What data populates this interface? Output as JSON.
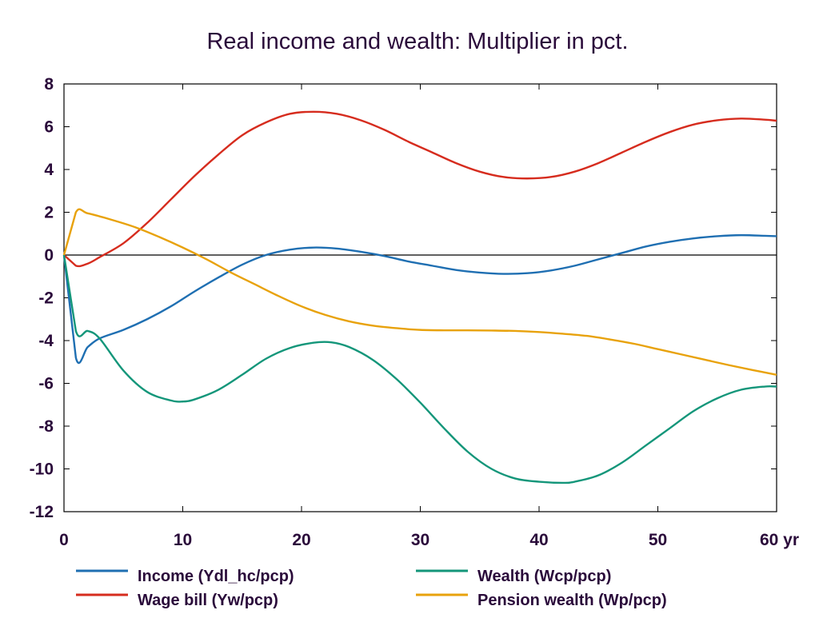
{
  "chart_data": {
    "type": "line",
    "title": "Real income and wealth: Multiplier in pct.",
    "xlabel": "",
    "ylabel": "",
    "x_unit_label": "yr",
    "xlim": [
      0,
      60
    ],
    "ylim": [
      -12,
      8
    ],
    "x_ticks": [
      0,
      10,
      20,
      30,
      40,
      50,
      60
    ],
    "x_tick_labels": [
      "0",
      "10",
      "20",
      "30",
      "40",
      "50",
      "60 yr"
    ],
    "y_ticks": [
      -12,
      -10,
      -8,
      -6,
      -4,
      -2,
      0,
      2,
      4,
      6,
      8
    ],
    "y_tick_labels": [
      "-12",
      "-10",
      "-8",
      "-6",
      "-4",
      "-2",
      "0",
      "2",
      "4",
      "6",
      "8"
    ],
    "grid": false,
    "zero_line": true,
    "legend_position": "bottom",
    "series": [
      {
        "name": "Income (Ydl_hc/pcp)",
        "color": "#1f6fb2",
        "x": [
          0,
          1,
          2,
          3,
          5,
          7,
          9,
          11,
          13,
          15,
          17,
          19,
          21,
          23,
          25,
          27,
          29,
          31,
          33,
          35,
          37,
          39,
          41,
          43,
          45,
          47,
          49,
          51,
          53,
          55,
          57,
          59,
          60
        ],
        "y": [
          0,
          -4.8,
          -4.3,
          -3.9,
          -3.5,
          -3.0,
          -2.4,
          -1.7,
          -1.05,
          -0.45,
          0.0,
          0.25,
          0.35,
          0.3,
          0.15,
          -0.05,
          -0.3,
          -0.5,
          -0.7,
          -0.82,
          -0.88,
          -0.85,
          -0.72,
          -0.5,
          -0.2,
          0.1,
          0.4,
          0.62,
          0.78,
          0.88,
          0.93,
          0.9,
          0.88
        ]
      },
      {
        "name": "Wage bill (Yw/pcp)",
        "color": "#d62c1e",
        "x": [
          0,
          1,
          2,
          3,
          5,
          7,
          9,
          11,
          13,
          15,
          17,
          19,
          21,
          23,
          25,
          27,
          29,
          31,
          33,
          35,
          37,
          39,
          41,
          43,
          45,
          47,
          49,
          51,
          53,
          55,
          57,
          59,
          60
        ],
        "y": [
          0,
          -0.5,
          -0.4,
          -0.1,
          0.55,
          1.5,
          2.6,
          3.7,
          4.7,
          5.6,
          6.2,
          6.6,
          6.7,
          6.6,
          6.3,
          5.85,
          5.3,
          4.8,
          4.3,
          3.9,
          3.65,
          3.58,
          3.65,
          3.9,
          4.3,
          4.8,
          5.3,
          5.75,
          6.1,
          6.3,
          6.38,
          6.33,
          6.28
        ]
      },
      {
        "name": "Wealth (Wcp/pcp)",
        "color": "#14967a",
        "x": [
          0,
          1,
          2,
          3,
          5,
          7,
          9,
          10,
          11,
          13,
          15,
          17,
          19,
          21,
          22.5,
          24,
          26,
          28,
          30,
          32,
          34,
          36,
          38,
          40,
          42,
          43,
          45,
          47,
          49,
          51,
          53,
          55,
          57,
          59,
          60
        ],
        "y": [
          0,
          -3.55,
          -3.55,
          -3.9,
          -5.4,
          -6.4,
          -6.8,
          -6.85,
          -6.75,
          -6.3,
          -5.6,
          -4.85,
          -4.35,
          -4.1,
          -4.08,
          -4.3,
          -4.9,
          -5.8,
          -6.9,
          -8.1,
          -9.2,
          -10.0,
          -10.45,
          -10.6,
          -10.65,
          -10.6,
          -10.3,
          -9.7,
          -8.9,
          -8.1,
          -7.3,
          -6.7,
          -6.3,
          -6.15,
          -6.15
        ]
      },
      {
        "name": "Pension wealth (Wp/pcp)",
        "color": "#e8a20c",
        "x": [
          0,
          1,
          2,
          4,
          6,
          8,
          10,
          12,
          14,
          16,
          18,
          20,
          22,
          24,
          26,
          28,
          30,
          32,
          34,
          36,
          38,
          40,
          42,
          44,
          46,
          48,
          50,
          52,
          54,
          56,
          58,
          60
        ],
        "y": [
          0,
          2.0,
          1.95,
          1.65,
          1.3,
          0.85,
          0.35,
          -0.2,
          -0.8,
          -1.35,
          -1.9,
          -2.4,
          -2.8,
          -3.1,
          -3.3,
          -3.42,
          -3.5,
          -3.52,
          -3.52,
          -3.53,
          -3.55,
          -3.6,
          -3.68,
          -3.78,
          -3.95,
          -4.15,
          -4.4,
          -4.65,
          -4.9,
          -5.15,
          -5.38,
          -5.6
        ]
      }
    ]
  }
}
